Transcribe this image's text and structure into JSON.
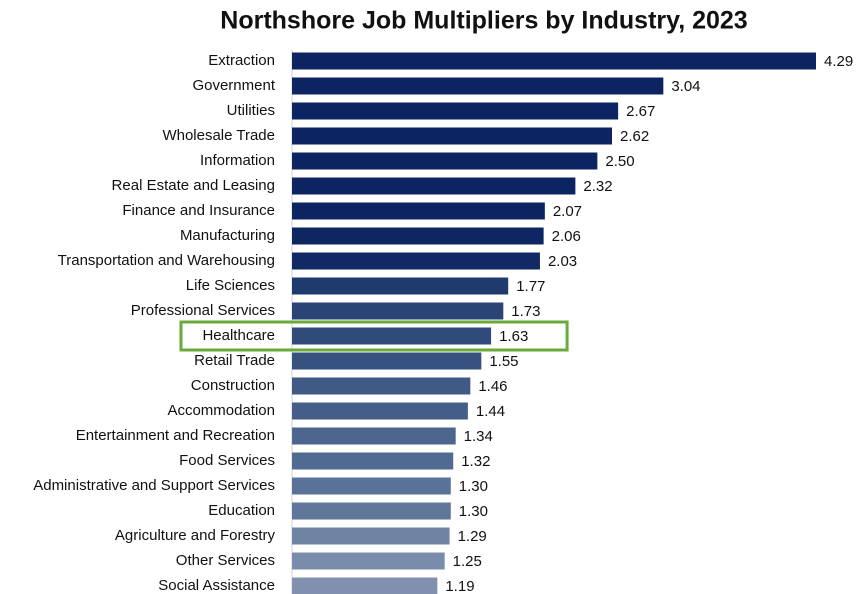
{
  "chart_data": {
    "type": "barh",
    "title": "Northshore Job Multipliers by Industry, 2023",
    "categories": [
      "Extraction",
      "Government",
      "Utilities",
      "Wholesale Trade",
      "Information",
      "Real Estate and Leasing",
      "Finance and Insurance",
      "Manufacturing",
      "Transportation and Warehousing",
      "Life Sciences",
      "Professional Services",
      "Healthcare",
      "Retail Trade",
      "Construction",
      "Accommodation",
      "Entertainment and Recreation",
      "Food Services",
      "Administrative and Support Services",
      "Education",
      "Agriculture and Forestry",
      "Other Services",
      "Social Assistance"
    ],
    "values": [
      4.29,
      3.04,
      2.67,
      2.62,
      2.5,
      2.32,
      2.07,
      2.06,
      2.03,
      1.77,
      1.73,
      1.63,
      1.55,
      1.46,
      1.44,
      1.34,
      1.32,
      1.3,
      1.3,
      1.29,
      1.25,
      1.19
    ],
    "value_labels": [
      "4.29",
      "3.04",
      "2.67",
      "2.62",
      "2.50",
      "2.32",
      "2.07",
      "2.06",
      "2.03",
      "1.77",
      "1.73",
      "1.63",
      "1.55",
      "1.46",
      "1.44",
      "1.34",
      "1.32",
      "1.30",
      "1.30",
      "1.29",
      "1.25",
      "1.19"
    ],
    "colors": [
      "#0c2461",
      "#0c2461",
      "#0c2461",
      "#0c2461",
      "#0c2461",
      "#0c2461",
      "#0c2461",
      "#0e2763",
      "#112a66",
      "#1f3b6e",
      "#2a4575",
      "#304b7a",
      "#38527f",
      "#3f5a85",
      "#435e88",
      "#4c668e",
      "#516a92",
      "#5a7298",
      "#607799",
      "#6f83a3",
      "#7a8cab",
      "#8090ae"
    ],
    "xlim": [
      0,
      4.29
    ],
    "highlight_index": 11,
    "highlight_color": "#6aaa3a"
  }
}
